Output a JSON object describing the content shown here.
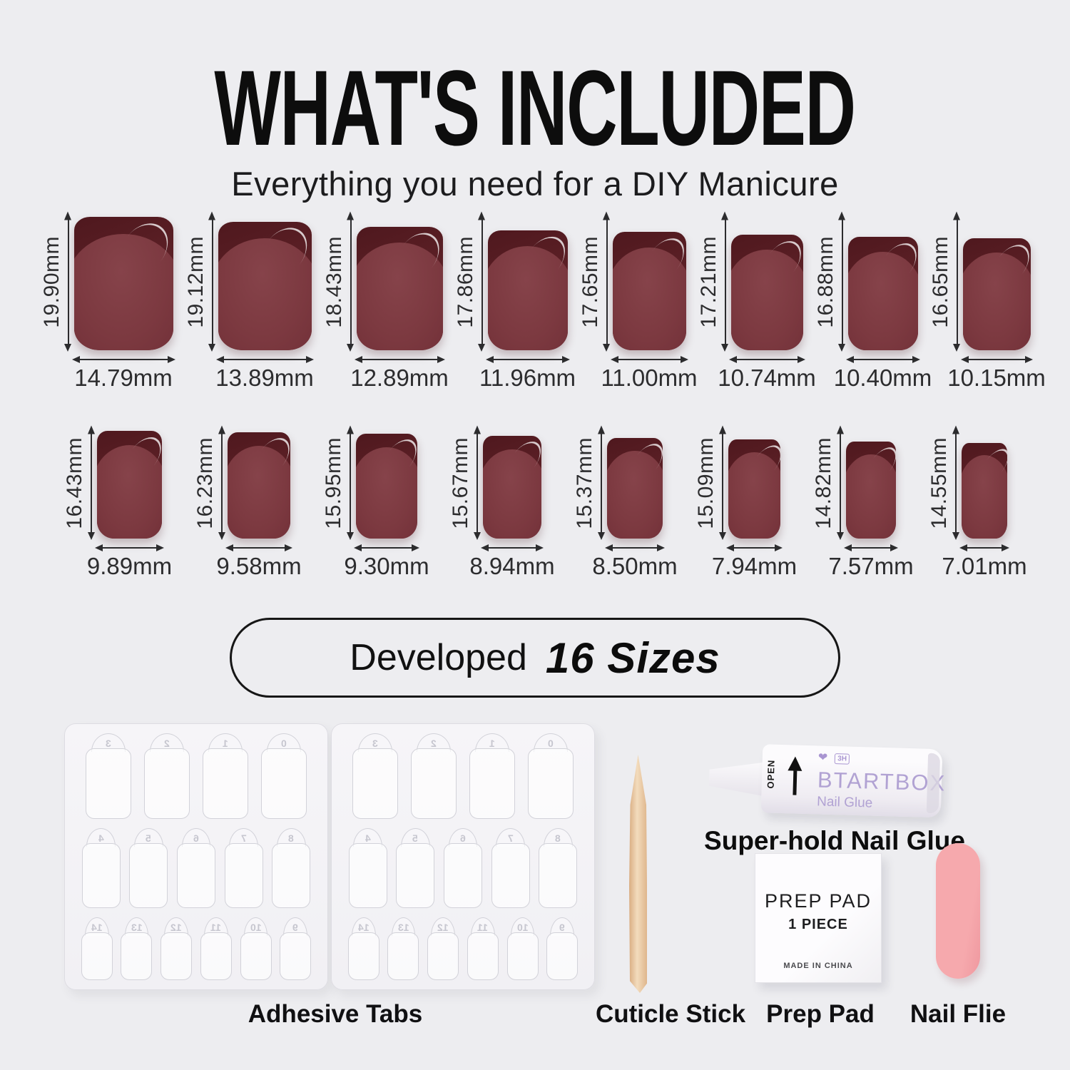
{
  "header": {
    "title": "WHAT'S INCLUDED",
    "subtitle": "Everything you need for a DIY Manicure"
  },
  "sizes": {
    "row1": [
      {
        "height": "19.90mm",
        "width": "14.79mm"
      },
      {
        "height": "19.12mm",
        "width": "13.89mm"
      },
      {
        "height": "18.43mm",
        "width": "12.89mm"
      },
      {
        "height": "17.86mm",
        "width": "11.96mm"
      },
      {
        "height": "17.65mm",
        "width": "11.00mm"
      },
      {
        "height": "17.21mm",
        "width": "10.74mm"
      },
      {
        "height": "16.88mm",
        "width": "10.40mm"
      },
      {
        "height": "16.65mm",
        "width": "10.15mm"
      }
    ],
    "row2": [
      {
        "height": "16.43mm",
        "width": "9.89mm"
      },
      {
        "height": "16.23mm",
        "width": "9.58mm"
      },
      {
        "height": "15.95mm",
        "width": "9.30mm"
      },
      {
        "height": "15.67mm",
        "width": "8.94mm"
      },
      {
        "height": "15.37mm",
        "width": "8.50mm"
      },
      {
        "height": "15.09mm",
        "width": "7.94mm"
      },
      {
        "height": "14.82mm",
        "width": "7.57mm"
      },
      {
        "height": "14.55mm",
        "width": "7.01mm"
      }
    ]
  },
  "badge": {
    "prefix": "Developed",
    "highlight": "16 Sizes"
  },
  "kit": {
    "adhesive_tabs": {
      "label": "Adhesive Tabs",
      "sheet_count": 2,
      "sheet_rows": [
        [
          "3",
          "2",
          "1",
          "0"
        ],
        [
          "4",
          "5",
          "6",
          "7",
          "8"
        ],
        [
          "14",
          "13",
          "12",
          "11",
          "10",
          "9"
        ]
      ]
    },
    "cuticle_stick": {
      "label": "Cuticle Stick"
    },
    "nail_glue": {
      "label": "Super-hold Nail Glue",
      "brand": "BTARTBOX",
      "product": "Nail Glue",
      "open_text": "OPEN",
      "badge": "3H"
    },
    "prep_pad": {
      "label": "Prep Pad",
      "line1": "PREP PAD",
      "line2": "1 PIECE",
      "line3": "MADE IN CHINA"
    },
    "nail_file": {
      "label": "Nail Flie"
    }
  },
  "colors": {
    "bg": "#ededf0",
    "nail_dark": "#5c2026",
    "nail_body": "#7c3940",
    "ink": "#0d0d0d",
    "measure": "#2c2c2e",
    "lavender": "#b1a2d3",
    "wood": "#e9c49c",
    "pink": "#f6a9ad"
  }
}
